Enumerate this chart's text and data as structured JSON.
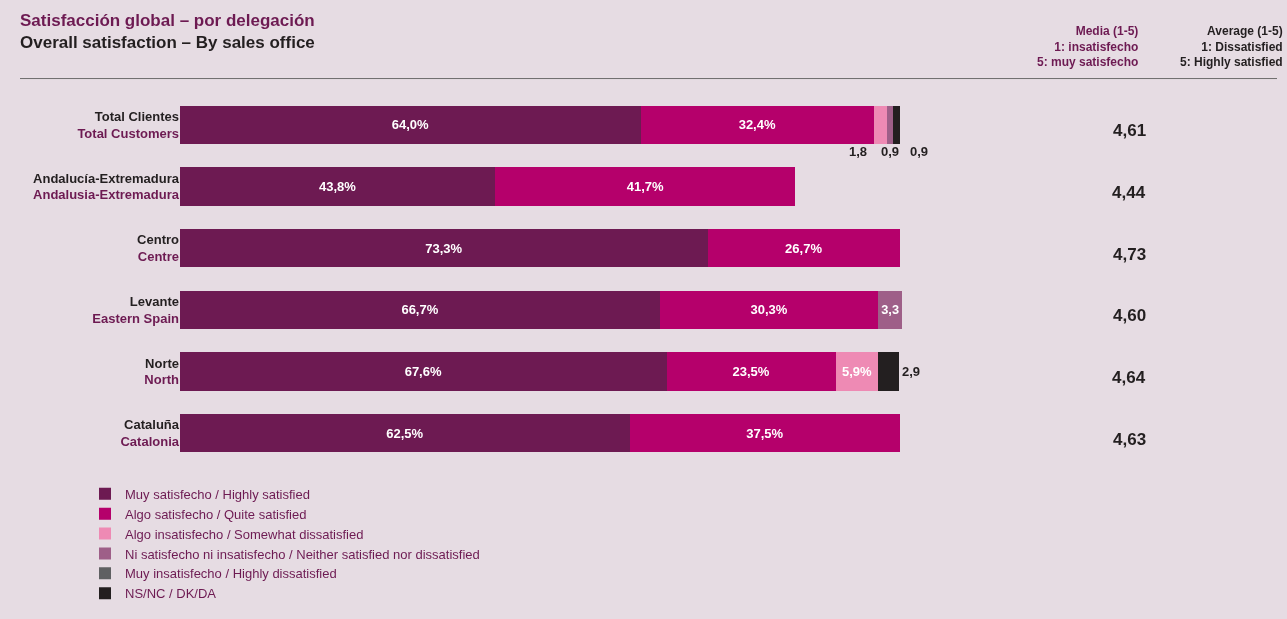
{
  "chart_data": {
    "type": "bar",
    "orientation": "horizontal",
    "stacked": true,
    "title": "Satisfacción global – por delegación",
    "subtitle": "Overall satisfaction – By sales office",
    "categories": [
      "Total Clientes\nTotal Customers",
      "Andalucía-Extremadura\nAndalusia-Extremadura",
      "Centro\nCentre",
      "Levante\nEastern Spain",
      "Norte\nNorth",
      "Cataluña\nCatalonia"
    ],
    "series": [
      {
        "name": "Muy satisfecho / Highly satisfied",
        "color": "#6d1a52",
        "values": [
          64.0,
          43.8,
          73.3,
          66.7,
          67.6,
          62.5
        ],
        "value_labels": [
          "64,0%",
          "43,8%",
          "73,3%",
          "66,7%",
          "67,6%",
          "62,5%"
        ]
      },
      {
        "name": "Algo satisfecho / Quite satisfied",
        "color": "#b5006b",
        "values": [
          32.4,
          41.7,
          26.7,
          30.3,
          23.5,
          37.5
        ],
        "value_labels": [
          "32,4%",
          "41,7%",
          "26,7%",
          "30,3%",
          "23,5%",
          "37,5%"
        ]
      },
      {
        "name": "Algo insatisfecho / Somewhat dissatisfied",
        "color": "#ee8ab4",
        "values": [
          1.8,
          null,
          null,
          null,
          5.9,
          null
        ],
        "value_labels": [
          "1,8",
          null,
          null,
          null,
          "5,9%",
          null
        ]
      },
      {
        "name": "Ni satisfecho ni insatisfecho / Neither satisfied nor dissatisfied",
        "color": "#9e5f88",
        "values": [
          0.9,
          null,
          null,
          3.3,
          null,
          null
        ],
        "value_labels": [
          "0,9",
          null,
          null,
          "3,3",
          null,
          null
        ]
      },
      {
        "name": "Muy insatisfecho / Highly dissatisfied",
        "color": "#5f6062",
        "values": [
          null,
          null,
          null,
          null,
          null,
          null
        ],
        "value_labels": [
          null,
          null,
          null,
          null,
          null,
          null
        ]
      },
      {
        "name": "NS/NC / DK/DA",
        "color": "#231f20",
        "values": [
          0.9,
          null,
          null,
          null,
          2.9,
          null
        ],
        "value_labels": [
          "0,9",
          null,
          null,
          null,
          "2,9",
          null
        ]
      }
    ],
    "annotations": [
      "Media (1-5)\n1: insatisfecho\n5: muy satisfecho",
      "Average (1-5)\n1: Dissatisfied\n5: Highly satisfied",
      "4,61",
      "4,44",
      "4,73",
      "4,60",
      "4,64",
      "4,63"
    ],
    "legend": "bottom left",
    "grid": false
  }
}
